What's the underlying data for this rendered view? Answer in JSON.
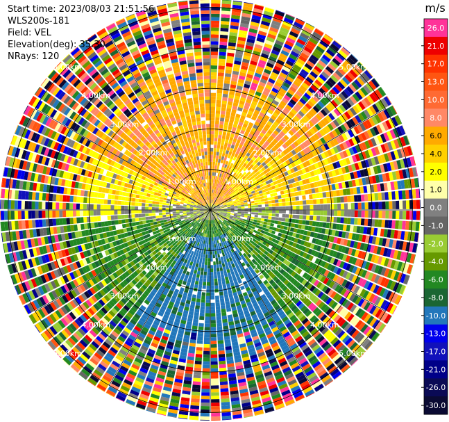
{
  "header": {
    "start_time": "Start time: 2023/08/03 21:51:56",
    "instrument": "WLS200s-181",
    "field": "Field: VEL",
    "elevation": "Elevation(deg): 35.30",
    "nrays": "NRays: 120"
  },
  "chart_data": {
    "type": "ppi",
    "field": "VEL",
    "units": "m/s",
    "nrays": 120,
    "elevation_deg": 35.3,
    "range_rings_km": [
      1.0,
      2.0,
      3.0,
      4.0,
      5.0
    ],
    "range_labels": [
      "1.00km",
      "2.00km",
      "3.00km",
      "4.00km",
      "5.00km"
    ],
    "max_range_km": 5.2,
    "colorbar": {
      "unit_label": "m/s",
      "levels": [
        {
          "label": "26.0",
          "color": "#ff3399"
        },
        {
          "label": "21.0",
          "color": "#ee0000"
        },
        {
          "label": "17.0",
          "color": "#ff3300"
        },
        {
          "label": "13.0",
          "color": "#ff5511"
        },
        {
          "label": "10.0",
          "color": "#ff6a33"
        },
        {
          "label": "8.0",
          "color": "#ff8866"
        },
        {
          "label": "6.0",
          "color": "#ffaa00"
        },
        {
          "label": "4.0",
          "color": "#ffd000"
        },
        {
          "label": "2.0",
          "color": "#ffff00"
        },
        {
          "label": "1.0",
          "color": "#ffffaa"
        },
        {
          "label": "0.0",
          "color": "#808080"
        },
        {
          "label": "-1.0",
          "color": "#666666"
        },
        {
          "label": "-2.0",
          "color": "#99cc33"
        },
        {
          "label": "-4.0",
          "color": "#669900"
        },
        {
          "label": "-6.0",
          "color": "#228822"
        },
        {
          "label": "-8.0",
          "color": "#1a6633"
        },
        {
          "label": "-10.0",
          "color": "#2277bb"
        },
        {
          "label": "-13.0",
          "color": "#0000ee"
        },
        {
          "label": "-17.0",
          "color": "#1111bb"
        },
        {
          "label": "-21.0",
          "color": "#000088"
        },
        {
          "label": "-26.0",
          "color": "#0a0a55"
        },
        {
          "label": "-30.0",
          "color": "#0a0a33"
        }
      ]
    }
  }
}
